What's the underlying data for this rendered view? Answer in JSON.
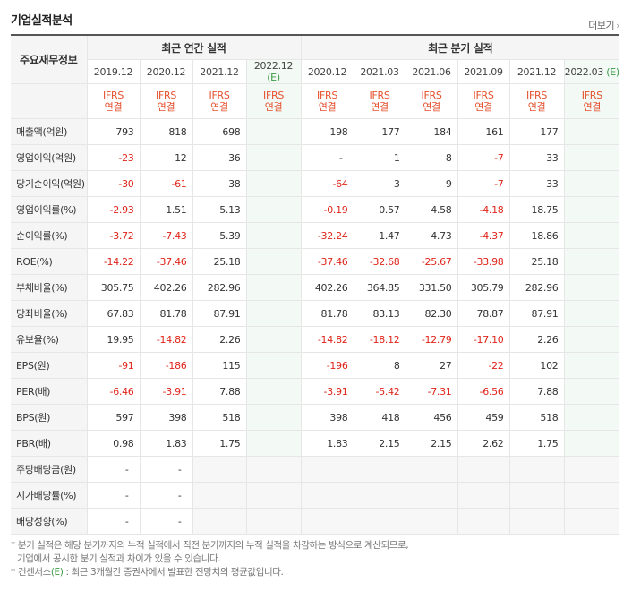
{
  "header": {
    "title": "기업실적분석",
    "more_label": "더보기"
  },
  "table": {
    "row_header_label": "주요재무정보",
    "group_annual": "최근 연간 실적",
    "group_quarter": "최근 분기 실적",
    "columns": [
      "2019.12",
      "2020.12",
      "2021.12",
      "2022.12",
      "2020.12",
      "2021.03",
      "2021.06",
      "2021.09",
      "2021.12",
      "2022.03"
    ],
    "estimate_marker": "(E)",
    "accounting_line1": "IFRS",
    "accounting_line2": "연결",
    "rows": [
      {
        "label": "매출액(억원)",
        "values": [
          "793",
          "818",
          "698",
          "",
          "198",
          "177",
          "184",
          "161",
          "177",
          ""
        ]
      },
      {
        "label": "영업이익(억원)",
        "values": [
          "-23",
          "12",
          "36",
          "",
          "-",
          "1",
          "8",
          "-7",
          "33",
          ""
        ]
      },
      {
        "label": "당기순이익(억원)",
        "values": [
          "-30",
          "-61",
          "38",
          "",
          "-64",
          "3",
          "9",
          "-7",
          "33",
          ""
        ]
      },
      {
        "label": "영업이익률(%)",
        "values": [
          "-2.93",
          "1.51",
          "5.13",
          "",
          "-0.19",
          "0.57",
          "4.58",
          "-4.18",
          "18.75",
          ""
        ]
      },
      {
        "label": "순이익률(%)",
        "values": [
          "-3.72",
          "-7.43",
          "5.39",
          "",
          "-32.24",
          "1.47",
          "4.73",
          "-4.37",
          "18.86",
          ""
        ]
      },
      {
        "label": "ROE(%)",
        "values": [
          "-14.22",
          "-37.46",
          "25.18",
          "",
          "-37.46",
          "-32.68",
          "-25.67",
          "-33.98",
          "25.18",
          ""
        ]
      },
      {
        "label": "부채비율(%)",
        "values": [
          "305.75",
          "402.26",
          "282.96",
          "",
          "402.26",
          "364.85",
          "331.50",
          "305.79",
          "282.96",
          ""
        ]
      },
      {
        "label": "당좌비율(%)",
        "values": [
          "67.83",
          "81.78",
          "87.91",
          "",
          "81.78",
          "83.13",
          "82.30",
          "78.87",
          "87.91",
          ""
        ]
      },
      {
        "label": "유보율(%)",
        "values": [
          "19.95",
          "-14.82",
          "2.26",
          "",
          "-14.82",
          "-18.12",
          "-12.79",
          "-17.10",
          "2.26",
          ""
        ]
      },
      {
        "label": "EPS(원)",
        "values": [
          "-91",
          "-186",
          "115",
          "",
          "-196",
          "8",
          "27",
          "-22",
          "102",
          ""
        ]
      },
      {
        "label": "PER(배)",
        "values": [
          "-6.46",
          "-3.91",
          "7.88",
          "",
          "-3.91",
          "-5.42",
          "-7.31",
          "-6.56",
          "7.88",
          ""
        ]
      },
      {
        "label": "BPS(원)",
        "values": [
          "597",
          "398",
          "518",
          "",
          "398",
          "418",
          "456",
          "459",
          "518",
          ""
        ]
      },
      {
        "label": "PBR(배)",
        "values": [
          "0.98",
          "1.83",
          "1.75",
          "",
          "1.83",
          "2.15",
          "2.15",
          "2.62",
          "1.75",
          ""
        ]
      },
      {
        "label": "주당배당금(원)",
        "values": [
          "-",
          "-",
          "",
          "",
          "",
          "",
          "",
          "",
          "",
          ""
        ]
      },
      {
        "label": "시가배당률(%)",
        "values": [
          "-",
          "-",
          "",
          "",
          "",
          "",
          "",
          "",
          "",
          ""
        ]
      },
      {
        "label": "배당성향(%)",
        "values": [
          "-",
          "-",
          "",
          "",
          "",
          "",
          "",
          "",
          "",
          ""
        ]
      }
    ]
  },
  "notes": {
    "line1": "분기 실적은 해당 분기까지의 누적 실적에서 직전 분기까지의 누적 실적을 차감하는 방식으로 계산되므로,",
    "line2": "기업에서 공시한 분기 실적과 차이가 있을 수 있습니다.",
    "line3_prefix": "컨센서스",
    "line3_marker": "(E)",
    "line3_suffix": ": 최근 3개월간 증권사에서 발표한 전망치의 평균값입니다."
  }
}
